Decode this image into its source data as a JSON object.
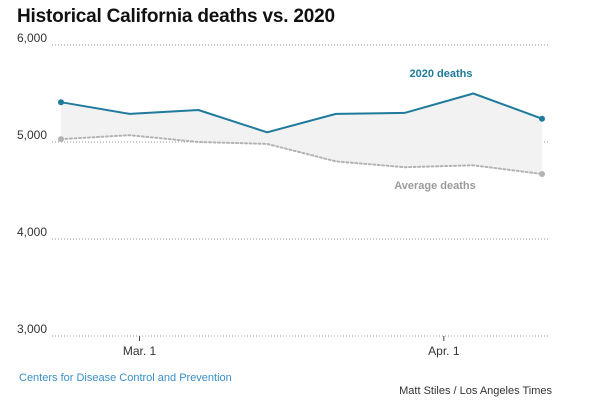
{
  "chart_data": {
    "type": "line",
    "title": "Historical California deaths vs. 2020",
    "xlabel": "",
    "ylabel": "",
    "ylim": [
      3000,
      6000
    ],
    "yticks": [
      {
        "value": 6000,
        "label": "6,000"
      },
      {
        "value": 5000,
        "label": "5,000"
      },
      {
        "value": 4000,
        "label": "4,000"
      },
      {
        "value": 3000,
        "label": "3,000"
      }
    ],
    "x": [
      "2020-02-22",
      "2020-02-29",
      "2020-03-07",
      "2020-03-14",
      "2020-03-21",
      "2020-03-28",
      "2020-04-04",
      "2020-04-11"
    ],
    "xticks": [
      {
        "value": "2020-03-01",
        "label": "Mar. 1"
      },
      {
        "value": "2020-04-01",
        "label": "Apr. 1"
      }
    ],
    "series": [
      {
        "name": "2020 deaths",
        "color": "#1f7a9c",
        "values": [
          5410,
          5290,
          5330,
          5100,
          5290,
          5300,
          5500,
          5240
        ]
      },
      {
        "name": "Average deaths",
        "color": "#b3b3b3",
        "values": [
          5030,
          5070,
          5000,
          4980,
          4800,
          4740,
          4760,
          4670
        ]
      }
    ],
    "gap_fill": "#f2f2f2",
    "grid": true,
    "legend": "direct labels"
  },
  "source": "Centers for Disease Control and Prevention",
  "credit": "Matt Stiles / Los Angeles Times"
}
